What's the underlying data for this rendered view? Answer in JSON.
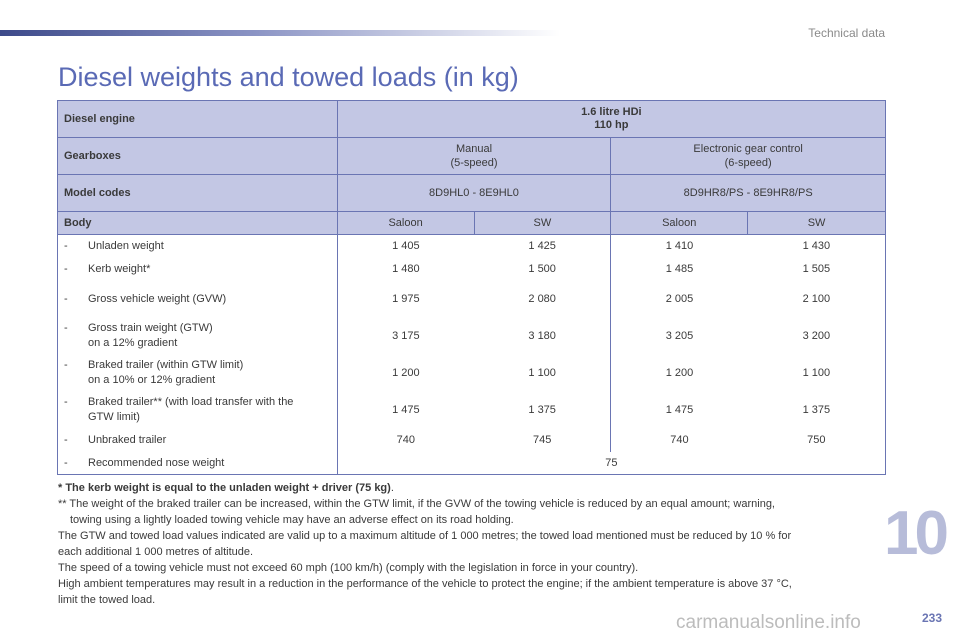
{
  "header": {
    "section": "Technical data"
  },
  "title": "Diesel weights and towed loads (in kg)",
  "table": {
    "engine_label": "Diesel engine",
    "engine_value_line1": "1.6 litre HDi",
    "engine_value_line2": "110 hp",
    "gearbox_label": "Gearboxes",
    "gearbox_manual_line1": "Manual",
    "gearbox_manual_line2": "(5-speed)",
    "gearbox_auto_line1": "Electronic gear control",
    "gearbox_auto_line2": "(6-speed)",
    "model_label": "Model codes",
    "model_manual": "8D9HL0 - 8E9HL0",
    "model_auto": "8D9HR8/PS - 8E9HR8/PS",
    "body_label": "Body",
    "bodies": [
      "Saloon",
      "SW",
      "Saloon",
      "SW"
    ],
    "rows": [
      {
        "dash": "-",
        "label": "Unladen weight",
        "label2": "",
        "values": [
          "1 405",
          "1 425",
          "1 410",
          "1 430"
        ]
      },
      {
        "dash": "-",
        "label": "Kerb weight*",
        "label2": "",
        "values": [
          "1 480",
          "1 500",
          "1 485",
          "1 505"
        ]
      },
      {
        "dash": "-",
        "label": "Gross vehicle weight (GVW)",
        "label2": "",
        "values": [
          "1 975",
          "2 080",
          "2 005",
          "2 100"
        ]
      },
      {
        "dash": "-",
        "label": "Gross train weight (GTW)",
        "label2": "on a 12% gradient",
        "values": [
          "3 175",
          "3 180",
          "3 205",
          "3 200"
        ]
      },
      {
        "dash": "-",
        "label": "Braked trailer (within GTW limit)",
        "label2": "on a 10% or 12% gradient",
        "values": [
          "1 200",
          "1 100",
          "1 200",
          "1 100"
        ]
      },
      {
        "dash": "-",
        "label": "Braked trailer** (with load transfer with the",
        "label2": "GTW limit)",
        "values": [
          "1 475",
          "1 375",
          "1 475",
          "1 375"
        ]
      },
      {
        "dash": "-",
        "label": "Unbraked trailer",
        "label2": "",
        "values": [
          "740",
          "745",
          "740",
          "750"
        ]
      }
    ],
    "nose_row": {
      "dash": "-",
      "label": "Recommended nose weight",
      "value": "75"
    }
  },
  "notes": {
    "n1": "* The kerb weight is equal to the unladen weight + driver (75 kg)",
    "n1_end": ".",
    "n2": "** The weight of the braked trailer can be increased, within the GTW limit, if the GVW of the towing vehicle is reduced by an equal amount; warning,",
    "n2b": "towing using a lightly loaded towing vehicle may have an adverse effect on its road holding.",
    "n3": "The GTW and towed load values indicated are valid up to a maximum altitude of 1 000 metres; the towed load mentioned must be reduced by 10 % for",
    "n3b": "each additional 1 000 metres of altitude.",
    "n4": "The speed of a towing vehicle must not exceed 60 mph (100 km/h) (comply with the legislation in force in your country).",
    "n5": "High ambient temperatures may result in a reduction in the performance of the vehicle to protect the engine; if the ambient temperature is above 37 °C,",
    "n5b": "limit the towed load."
  },
  "footer": {
    "chapter": "10",
    "page": "233",
    "watermark": "carmanualsonline.info"
  }
}
